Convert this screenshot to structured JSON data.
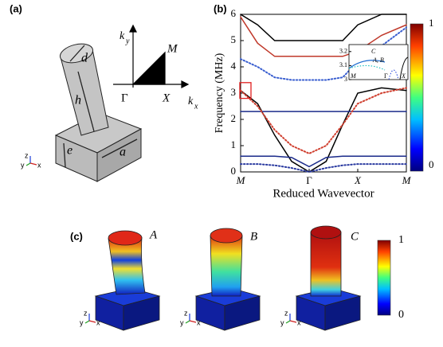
{
  "panels": {
    "a": "(a)",
    "b": "(b)",
    "c": "(c)"
  },
  "unit_cell": {
    "d": "d",
    "h": "h",
    "e": "e",
    "a": "a"
  },
  "brillouin_zone": {
    "ky": "k",
    "ky_sub": "y",
    "kx": "k",
    "kx_sub": "x",
    "M": "M",
    "G": "Γ",
    "X": "X"
  },
  "triad": {
    "x": "x",
    "y": "y",
    "z": "z"
  },
  "chart_data": {
    "type": "line",
    "ylabel": "Frequency (MHz)",
    "xlabel": "Reduced Wavevector",
    "x": [
      0,
      0.35,
      0.7,
      1.05,
      1.41,
      1.76,
      2.1,
      2.41,
      2.9,
      3.41
    ],
    "xlim": [
      0,
      3.41
    ],
    "xticks": [
      {
        "value": 0,
        "label": "M"
      },
      {
        "value": 1.41,
        "label": "Γ"
      },
      {
        "value": 2.41,
        "label": "X"
      },
      {
        "value": 3.41,
        "label": "M"
      }
    ],
    "ylim": [
      0,
      6
    ],
    "yticks": [
      0,
      1,
      2,
      3,
      4,
      5,
      6
    ],
    "series": [
      {
        "color": "#000000",
        "dash": false,
        "values": [
          3.1,
          2.6,
          1.4,
          0.4,
          0,
          0.4,
          1.8,
          3.0,
          3.2,
          3.1
        ]
      },
      {
        "color": "#1a2a8a",
        "dash": false,
        "values": [
          2.3,
          2.3,
          2.3,
          2.3,
          2.3,
          2.3,
          2.3,
          2.3,
          2.3,
          2.3
        ]
      },
      {
        "color": "#1a2a8a",
        "dash": false,
        "values": [
          0.6,
          0.6,
          0.6,
          0.55,
          0.2,
          0.55,
          0.6,
          0.6,
          0.6,
          0.6
        ]
      },
      {
        "color": "#2a3aa0",
        "dash": true,
        "values": [
          0.3,
          0.3,
          0.25,
          0.15,
          0,
          0.15,
          0.25,
          0.3,
          0.3,
          0.3
        ]
      },
      {
        "color": "#000000",
        "dash": false,
        "values": [
          6,
          5.6,
          5,
          5,
          5,
          5,
          5,
          5.6,
          6,
          6
        ]
      },
      {
        "color": "#c0392b",
        "dash": false,
        "values": [
          5.9,
          4.9,
          4.4,
          4.4,
          4.4,
          4.4,
          4.4,
          4.6,
          5.2,
          5.6
        ]
      },
      {
        "color": "#3a5fd0",
        "dash": true,
        "values": [
          4.3,
          4.0,
          3.6,
          3.5,
          3.5,
          3.5,
          3.6,
          4.2,
          4.8,
          5.5
        ]
      },
      {
        "color": "#d04030",
        "dash": true,
        "values": [
          3.1,
          2.5,
          1.6,
          1.0,
          0.7,
          1.0,
          1.8,
          2.6,
          3.0,
          3.2
        ]
      }
    ]
  },
  "inset": {
    "yticks": [
      3,
      3.1,
      3.2
    ],
    "ylim": [
      3,
      3.25
    ],
    "C": "C",
    "AB": "A, B",
    "M": "M",
    "G": "Γ",
    "X": "X"
  },
  "colorbar_b": {
    "max": "1",
    "min": "0"
  },
  "modes": [
    "A",
    "B",
    "C"
  ],
  "colorbar_c": {
    "max": "1",
    "min": "0"
  }
}
